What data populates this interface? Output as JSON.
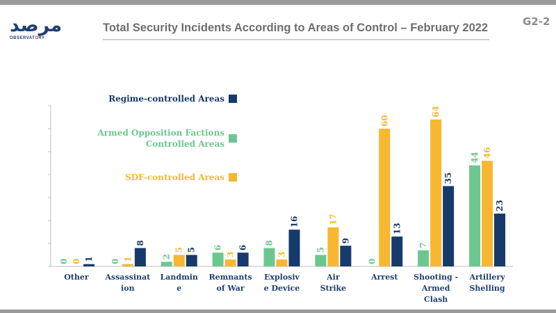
{
  "header": {
    "logo_ar": "مرصد",
    "logo_en_left": "OBSERVAT",
    "logo_en_mid": "O",
    "logo_en_right": "RY",
    "title": "Total Security Incidents According to Areas of Control – February 2022",
    "code": "G2-2"
  },
  "colors": {
    "regime": "#163a6b",
    "opposition": "#6cc78f",
    "sdf": "#f7b731"
  },
  "chart_data": {
    "type": "bar",
    "title": "Total Security Incidents According to Areas of Control – February 2022",
    "xlabel": "",
    "ylabel": "",
    "ylim": [
      0,
      70
    ],
    "grid": false,
    "legend_position": "left-inside",
    "categories": [
      "Other",
      "Assassination",
      "Landmine",
      "Remnants of War",
      "Explosive Device",
      "Air Strike",
      "Arrest",
      "Shooting - Armed Clash",
      "Artillery Shelling"
    ],
    "category_lines": [
      [
        "Other"
      ],
      [
        "Assassinat",
        "ion"
      ],
      [
        "Landmin",
        "e"
      ],
      [
        "Remnants",
        "of War"
      ],
      [
        "Explosiv",
        "e Device"
      ],
      [
        "Air",
        "Strike"
      ],
      [
        "Arrest"
      ],
      [
        "Shooting -",
        "Armed",
        "Clash"
      ],
      [
        "Artillery",
        "Shelling"
      ]
    ],
    "series": [
      {
        "name": "Armed Opposition Factions Controlled Areas",
        "legend_lines": [
          "Armed Opposition Factions",
          "Controlled Areas"
        ],
        "color": "#6cc78f",
        "values": [
          0,
          0,
          2,
          6,
          8,
          5,
          0,
          7,
          44
        ]
      },
      {
        "name": "SDF-controlled Areas",
        "legend_lines": [
          "SDF-controlled Areas"
        ],
        "color": "#f7b731",
        "values": [
          0,
          1,
          5,
          3,
          3,
          17,
          60,
          64,
          46
        ]
      },
      {
        "name": "Regime-controlled Areas",
        "legend_lines": [
          "Regime-controlled Areas"
        ],
        "color": "#163a6b",
        "values": [
          1,
          8,
          5,
          6,
          16,
          9,
          13,
          35,
          23
        ]
      }
    ],
    "legend_order": [
      2,
      0,
      1
    ]
  }
}
